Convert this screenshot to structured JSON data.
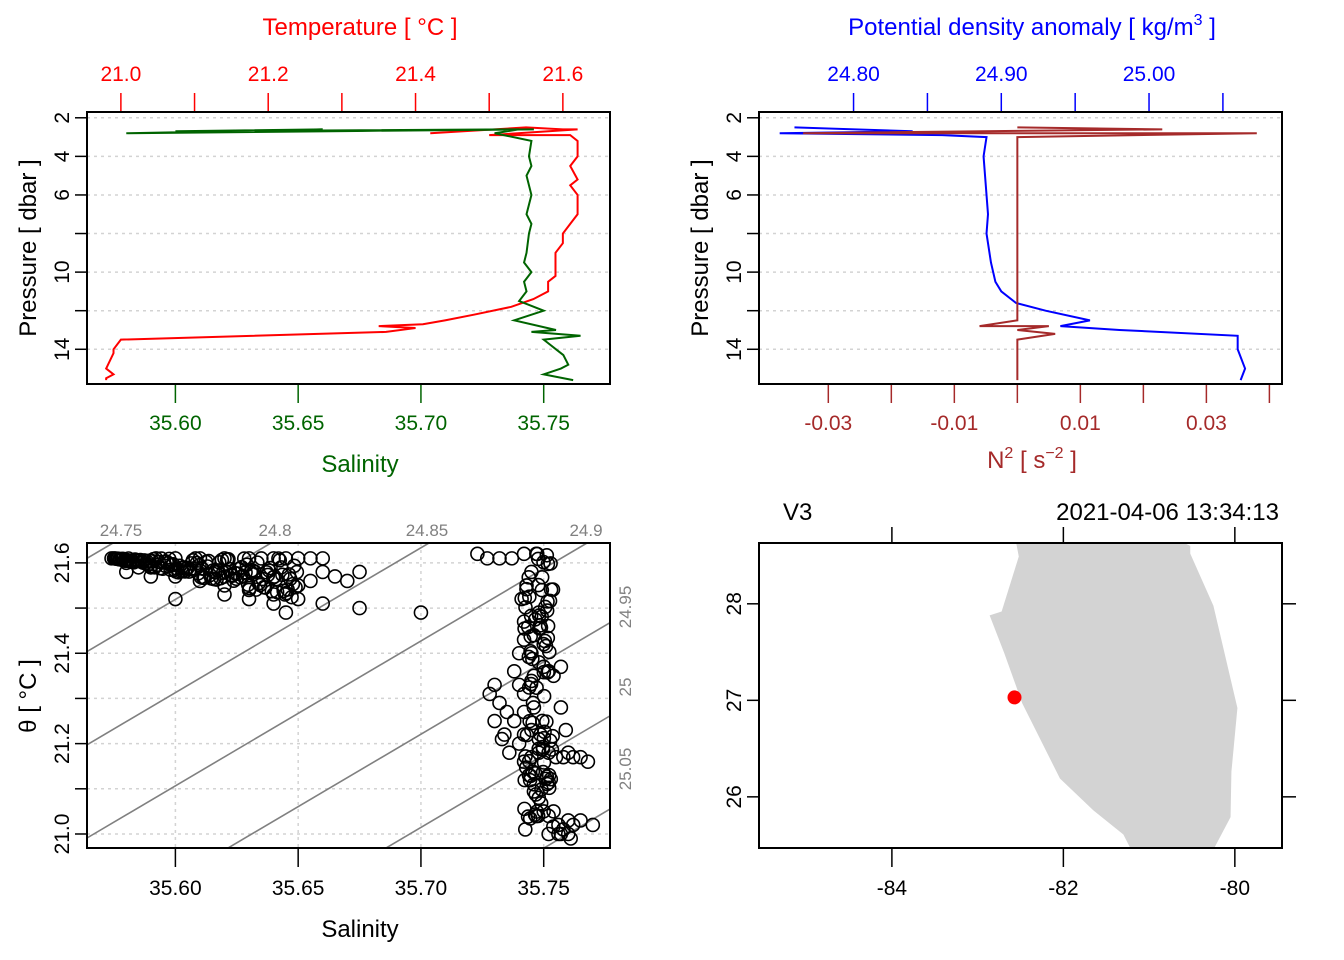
{
  "chart_data": [
    {
      "id": "profile_ts",
      "type": "line",
      "colors": {
        "temperature": "#ff0000",
        "salinity": "#006400"
      },
      "top_axis": {
        "label": "Temperature [ °C ]",
        "ticks": [
          21.0,
          21.1,
          21.2,
          21.3,
          21.4,
          21.5,
          21.6
        ],
        "tick_labels": [
          "21.0",
          "",
          "21.2",
          "",
          "21.4",
          "",
          "21.6"
        ],
        "range": [
          20.954,
          21.664
        ]
      },
      "bottom_axis": {
        "label": "Salinity",
        "ticks": [
          35.6,
          35.65,
          35.7,
          35.75
        ],
        "tick_labels": [
          "35.60",
          "35.65",
          "35.70",
          "35.75"
        ],
        "range": [
          35.564,
          35.777
        ]
      },
      "left_axis": {
        "label": "Pressure [ dbar ]",
        "ticks": [
          2,
          4,
          6,
          8,
          10,
          12,
          14
        ],
        "tick_labels": [
          "2",
          "4",
          "6",
          "",
          "10",
          "",
          "14"
        ],
        "range": [
          15.8,
          1.7
        ],
        "reversed": true
      },
      "grid": true,
      "series": [
        {
          "name": "Temperature",
          "x": [
            21.42,
            21.55,
            21.6,
            21.62,
            21.5,
            21.61,
            21.62,
            21.62,
            21.61,
            21.62,
            21.61,
            21.62,
            21.62,
            21.61,
            21.6,
            21.6,
            21.59,
            21.59,
            21.59,
            21.59,
            21.59,
            21.58,
            21.58,
            21.58,
            21.57,
            21.56,
            21.53,
            21.48,
            21.44,
            21.41,
            21.35,
            21.4,
            21.36,
            21.0,
            20.99,
            20.99,
            20.98,
            20.99,
            20.98,
            20.98
          ],
          "pressure": [
            2.8,
            2.5,
            2.6,
            2.6,
            2.9,
            2.9,
            3.2,
            4.0,
            4.5,
            5.2,
            5.5,
            6.0,
            7.0,
            7.5,
            8.0,
            8.5,
            9.0,
            9.5,
            9.7,
            10.0,
            10.2,
            10.5,
            10.8,
            11.0,
            11.2,
            11.4,
            11.8,
            12.2,
            12.5,
            12.7,
            12.8,
            12.9,
            13.1,
            13.5,
            14.0,
            14.2,
            15.0,
            15.3,
            15.5,
            15.6
          ]
        },
        {
          "name": "Salinity",
          "x": [
            35.746,
            35.58,
            35.66,
            35.6,
            35.74,
            35.73,
            35.745,
            35.744,
            35.745,
            35.743,
            35.745,
            35.744,
            35.743,
            35.745,
            35.744,
            35.743,
            35.742,
            35.745,
            35.742,
            35.743,
            35.74,
            35.75,
            35.738,
            35.755,
            35.745,
            35.765,
            35.75,
            35.752,
            35.755,
            35.758,
            35.76,
            35.757,
            35.75,
            35.762
          ],
          "pressure": [
            2.6,
            2.8,
            2.6,
            2.7,
            2.6,
            2.8,
            3.2,
            4.0,
            4.5,
            5.0,
            6.0,
            6.5,
            7.0,
            7.5,
            8.0,
            9.0,
            9.5,
            10.0,
            10.5,
            11.0,
            11.5,
            12.0,
            12.5,
            13.0,
            13.1,
            13.3,
            13.5,
            13.7,
            14.0,
            14.3,
            14.8,
            15.0,
            15.3,
            15.6
          ]
        }
      ]
    },
    {
      "id": "profile_density",
      "type": "line",
      "colors": {
        "density": "#0000ff",
        "n2": "#a52a2a"
      },
      "top_axis": {
        "label": "Potential density anomaly [ kg/m³ ]",
        "label_main": "Potential density anomaly [ kg/m",
        "label_sup": "3",
        "label_end": " ]",
        "ticks": [
          24.8,
          24.85,
          24.9,
          24.95,
          25.0,
          25.05
        ],
        "tick_labels": [
          "24.80",
          "",
          "24.90",
          "",
          "25.00",
          ""
        ],
        "range": [
          24.736,
          25.09
        ]
      },
      "bottom_axis": {
        "label": "N² [ s⁻² ]",
        "label_main": "N",
        "label_sup": "2",
        "label_mid": " [ s",
        "label_sup2": "−2",
        "label_end": " ]",
        "ticks": [
          -0.03,
          -0.02,
          -0.01,
          0.0,
          0.01,
          0.02,
          0.03,
          0.04
        ],
        "tick_labels": [
          "-0.03",
          "",
          "-0.01",
          "",
          "0.01",
          "",
          "0.03",
          ""
        ],
        "range": [
          -0.041,
          0.042
        ]
      },
      "left_axis": {
        "label": "Pressure [ dbar ]",
        "ticks": [
          2,
          4,
          6,
          8,
          10,
          12,
          14
        ],
        "tick_labels": [
          "2",
          "4",
          "6",
          "",
          "10",
          "",
          "14"
        ],
        "range": [
          15.8,
          1.7
        ],
        "reversed": true
      },
      "grid": true,
      "series": [
        {
          "name": "Potential density anomaly",
          "x": [
            24.76,
            24.84,
            24.75,
            24.86,
            24.89,
            24.888,
            24.889,
            24.89,
            24.891,
            24.89,
            24.892,
            24.893,
            24.896,
            24.9,
            24.91,
            24.93,
            24.96,
            24.94,
            24.98,
            25.06,
            25.06,
            25.065,
            25.062
          ],
          "pressure": [
            2.5,
            2.7,
            2.8,
            2.9,
            3.0,
            4.0,
            5.0,
            6.0,
            7.0,
            8.0,
            9.0,
            9.5,
            10.5,
            11.0,
            11.6,
            12.0,
            12.5,
            12.8,
            13.0,
            13.3,
            14.0,
            15.0,
            15.6
          ]
        },
        {
          "name": "N2",
          "x": [
            0.0,
            0.023,
            -0.034,
            0.038,
            0.0,
            0.0,
            0.0,
            0.0,
            0.0,
            0.0,
            -0.006,
            0.005,
            0.0,
            0.006,
            0.0,
            0.0,
            0.0
          ],
          "pressure": [
            2.5,
            2.6,
            2.8,
            2.8,
            3.0,
            4.0,
            8.0,
            11.0,
            12.0,
            12.5,
            12.8,
            12.8,
            13.0,
            13.2,
            13.5,
            15.0,
            15.6
          ]
        }
      ]
    },
    {
      "id": "ts_diagram",
      "type": "scatter",
      "xlabel": "Salinity",
      "ylabel": "θ [ °C ]",
      "x_ticks": [
        35.6,
        35.65,
        35.7,
        35.75
      ],
      "x_tick_labels": [
        "35.60",
        "35.65",
        "35.70",
        "35.75"
      ],
      "xlim": [
        35.564,
        35.777
      ],
      "y_ticks": [
        21.0,
        21.1,
        21.2,
        21.3,
        21.4,
        21.5,
        21.6
      ],
      "y_tick_labels": [
        "21.0",
        "",
        "21.2",
        "",
        "21.4",
        "",
        "21.6"
      ],
      "ylim": [
        20.969,
        21.644
      ],
      "grid": true,
      "isopycnals": {
        "labels_top": [
          "24.75",
          "24.8",
          "24.85",
          "24.9"
        ],
        "labels_right": [
          "24.95",
          "25",
          "25.05"
        ],
        "values": [
          24.75,
          24.8,
          24.85,
          24.9,
          24.95,
          25.0,
          25.05,
          25.1
        ],
        "color": "#808080"
      },
      "points": {
        "salinity": [
          35.574,
          35.58,
          35.585,
          35.59,
          35.6,
          35.61,
          35.62,
          35.63,
          35.64,
          35.645,
          35.65,
          35.655,
          35.66,
          35.58,
          35.59,
          35.6,
          35.61,
          35.62,
          35.63,
          35.64,
          35.65,
          35.655,
          35.66,
          35.665,
          35.67,
          35.675,
          35.6,
          35.62,
          35.63,
          35.64,
          35.645,
          35.65,
          35.66,
          35.675,
          35.7,
          35.723,
          35.727,
          35.732,
          35.737,
          35.742,
          35.747,
          35.745,
          35.743,
          35.741,
          35.742,
          35.748,
          35.746,
          35.742,
          35.74,
          35.745,
          35.75,
          35.752,
          35.738,
          35.74,
          35.742,
          35.746,
          35.748,
          35.75,
          35.752,
          35.754,
          35.757,
          35.73,
          35.732,
          35.735,
          35.728,
          35.73,
          35.734,
          35.738,
          35.742,
          35.746,
          35.757,
          35.733,
          35.736,
          35.74,
          35.742,
          35.745,
          35.748,
          35.759,
          35.742,
          35.745,
          35.748,
          35.752,
          35.755,
          35.758,
          35.76,
          35.762,
          35.765,
          35.768,
          35.744,
          35.746,
          35.748,
          35.75,
          35.752,
          35.754,
          35.756,
          35.757,
          35.758,
          35.76,
          35.762,
          35.765,
          35.77,
          35.752,
          35.756,
          35.758,
          35.76,
          35.761
        ],
        "theta": [
          21.61,
          21.6,
          21.59,
          21.59,
          21.61,
          21.61,
          21.61,
          21.61,
          21.61,
          21.61,
          21.61,
          21.61,
          21.61,
          21.58,
          21.57,
          21.57,
          21.56,
          21.55,
          21.54,
          21.53,
          21.55,
          21.56,
          21.58,
          21.57,
          21.56,
          21.58,
          21.52,
          21.53,
          21.52,
          21.51,
          21.49,
          21.52,
          21.51,
          21.5,
          21.49,
          21.62,
          21.61,
          21.61,
          21.61,
          21.62,
          21.62,
          21.58,
          21.55,
          21.52,
          21.47,
          21.49,
          21.44,
          21.43,
          21.4,
          21.4,
          21.42,
          21.36,
          21.36,
          21.33,
          21.31,
          21.35,
          21.38,
          21.37,
          21.36,
          21.35,
          21.37,
          21.33,
          21.29,
          21.27,
          21.31,
          21.25,
          21.22,
          21.25,
          21.27,
          21.28,
          21.28,
          21.21,
          21.18,
          21.2,
          21.22,
          21.23,
          21.21,
          21.23,
          21.16,
          21.17,
          21.18,
          21.18,
          21.17,
          21.17,
          21.18,
          21.17,
          21.17,
          21.16,
          21.13,
          21.11,
          21.08,
          21.05,
          21.04,
          21.05,
          21.02,
          21.0,
          21.01,
          21.03,
          21.02,
          21.03,
          21.02,
          21.0,
          21.0,
          21.01,
          21.0,
          20.99
        ],
        "marker": "open-circle",
        "color": "#000000"
      }
    },
    {
      "id": "station_map",
      "type": "map",
      "title_left": "V3",
      "title_right": "2021-04-06 13:34:13",
      "x_ticks": [
        -84,
        -82,
        -80
      ],
      "x_tick_labels": [
        "-84",
        "-82",
        "-80"
      ],
      "xlim": [
        -85.55,
        -79.45
      ],
      "y_ticks": [
        26,
        27,
        28
      ],
      "y_tick_labels": [
        "26",
        "27",
        "28"
      ],
      "ylim": [
        25.47,
        28.63
      ],
      "land_color": "#d3d3d3",
      "land_polygon": {
        "lon": [
          -82.55,
          -82.52,
          -82.72,
          -82.86,
          -82.69,
          -82.48,
          -82.04,
          -81.65,
          -81.3,
          -81.22,
          -80.24,
          -80.05,
          -80.04,
          -79.97,
          -80.25,
          -80.52,
          -80.52,
          -80.59
        ],
        "lat": [
          28.63,
          28.49,
          27.92,
          27.88,
          27.49,
          26.97,
          26.19,
          25.86,
          25.61,
          25.47,
          25.47,
          25.79,
          26.26,
          26.92,
          27.98,
          28.52,
          28.6,
          28.63
        ]
      },
      "station": {
        "lon": -82.57,
        "lat": 27.03,
        "color": "#ff0000"
      }
    }
  ]
}
